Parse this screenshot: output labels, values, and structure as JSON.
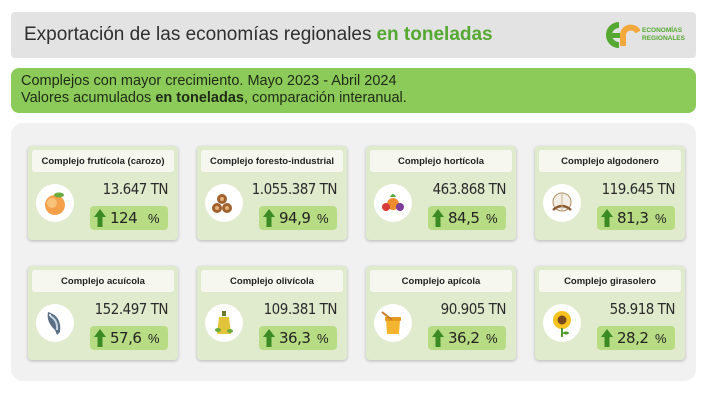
{
  "header": {
    "title_main": "Exportación de las economías regionales",
    "title_highlight": "en toneladas",
    "logo_line1": "ECONOMÍAS",
    "logo_line2": "REGIONALES"
  },
  "subtitle": {
    "line1": "Complejos con mayor crecimiento. Mayo 2023 - Abril 2024",
    "line2_before": "Valores acumulados ",
    "line2_bold": "en toneladas",
    "line2_after": ", comparación interanual."
  },
  "cards": [
    {
      "name": "Complejo frutícola (carozo)",
      "value": "13.647 TN",
      "pct": "124",
      "pct_sign": "%",
      "icon": "peach-icon"
    },
    {
      "name": "Complejo foresto-industrial",
      "value": "1.055.387 TN",
      "pct": "94,9",
      "pct_sign": "%",
      "icon": "logs-icon"
    },
    {
      "name": "Complejo hortícola",
      "value": "463.868 TN",
      "pct": "84,5",
      "pct_sign": "%",
      "icon": "vegetables-icon"
    },
    {
      "name": "Complejo algodonero",
      "value": "119.645 TN",
      "pct": "81,3",
      "pct_sign": "%",
      "icon": "cotton-icon"
    },
    {
      "name": "Complejo acuícola",
      "value": "152.497 TN",
      "pct": "57,6",
      "pct_sign": "%",
      "icon": "fish-icon"
    },
    {
      "name": "Complejo olivícola",
      "value": "109.381 TN",
      "pct": "36,3",
      "pct_sign": "%",
      "icon": "olive-oil-icon"
    },
    {
      "name": "Complejo apícola",
      "value": "90.905 TN",
      "pct": "36,2",
      "pct_sign": "%",
      "icon": "honey-icon"
    },
    {
      "name": "Complejo girasolero",
      "value": "58.918 TN",
      "pct": "28,2",
      "pct_sign": "%",
      "icon": "sunflower-icon"
    }
  ],
  "colors": {
    "accent_green": "#55a832",
    "card_bg": "#e0ebcd",
    "pct_bg": "#b8dc84",
    "subtitle_bg": "#8ccb5a",
    "arrow": "#3c8a22"
  }
}
